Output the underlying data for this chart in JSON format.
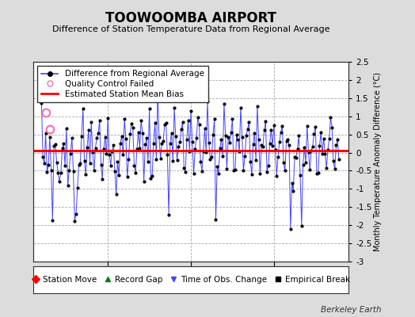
{
  "title": "TOOWOOMBA AIRPORT",
  "subtitle": "Difference of Station Temperature Data from Regional Average",
  "ylabel_right": "Monthly Temperature Anomaly Difference (°C)",
  "bias": 0.05,
  "ylim": [
    -3,
    2.5
  ],
  "yticks": [
    -3,
    -2.5,
    -2,
    -1.5,
    -1,
    -0.5,
    0,
    0.5,
    1,
    1.5,
    2,
    2.5
  ],
  "xlim": [
    1995.5,
    2014.5
  ],
  "xticks": [
    2000,
    2005,
    2010
  ],
  "background_color": "#dcdcdc",
  "plot_bg_color": "#ffffff",
  "line_color": "#4444ff",
  "marker_color": "#000000",
  "bias_color": "#ff0000",
  "qc_color": "#ff69b4",
  "legend1_labels": [
    "Difference from Regional Average",
    "Quality Control Failed",
    "Estimated Station Mean Bias"
  ],
  "legend2_labels": [
    "Station Move",
    "Record Gap",
    "Time of Obs. Change",
    "Empirical Break"
  ],
  "watermark": "Berkeley Earth",
  "seed": 42,
  "n_points": 216,
  "start_year": 1996.0,
  "data": [
    1.3,
    -0.1,
    -0.4,
    0.3,
    -0.5,
    -0.3,
    0.2,
    -0.6,
    -1.8,
    0.1,
    0.3,
    -0.2,
    -0.6,
    -0.5,
    -0.3,
    0.2,
    0.4,
    -0.4,
    0.8,
    -0.7,
    -0.7,
    0.0,
    0.4,
    -0.3,
    -1.8,
    -1.7,
    -0.8,
    -0.4,
    -0.2,
    0.5,
    1.3,
    -0.5,
    -0.6,
    0.3,
    0.5,
    -0.1,
    0.8,
    0.3,
    -0.3,
    0.1,
    0.3,
    0.5,
    0.9,
    -0.3,
    -0.5,
    0.2,
    0.5,
    -0.2,
    0.9,
    0.2,
    -0.4,
    0.1,
    0.3,
    -0.6,
    -1.3,
    -0.4,
    -0.5,
    0.3,
    0.4,
    -0.2,
    1.0,
    0.4,
    -0.5,
    0.0,
    0.4,
    0.6,
    0.7,
    -0.5,
    -0.6,
    0.2,
    0.5,
    -0.1,
    0.9,
    0.3,
    -0.4,
    0.1,
    0.4,
    -0.2,
    1.2,
    -0.4,
    -0.6,
    0.2,
    0.6,
    -0.1,
    1.8,
    0.5,
    -0.3,
    0.2,
    0.4,
    0.7,
    0.8,
    -0.2,
    -1.6,
    0.3,
    0.6,
    -0.0,
    1.2,
    0.4,
    -0.2,
    0.2,
    0.5,
    0.7,
    0.9,
    -0.3,
    -0.5,
    0.3,
    0.6,
    -0.0,
    1.1,
    0.3,
    -0.3,
    0.1,
    0.4,
    0.6,
    0.8,
    -0.3,
    -0.5,
    0.2,
    0.5,
    -0.1,
    1.3,
    0.4,
    -0.4,
    0.1,
    0.4,
    0.6,
    -1.7,
    -0.3,
    -0.6,
    0.2,
    0.6,
    -0.1,
    1.5,
    0.4,
    -0.3,
    0.2,
    0.4,
    0.6,
    0.8,
    -0.3,
    -0.5,
    0.3,
    0.6,
    -0.0,
    1.2,
    0.3,
    -0.3,
    0.1,
    0.4,
    0.6,
    0.8,
    -0.3,
    -0.5,
    0.2,
    0.5,
    -0.1,
    1.0,
    0.3,
    -0.4,
    0.1,
    0.3,
    0.5,
    0.7,
    -0.4,
    -0.5,
    0.2,
    0.5,
    -0.1,
    0.8,
    0.2,
    -0.5,
    0.0,
    0.3,
    0.5,
    0.7,
    -0.4,
    -0.5,
    0.1,
    0.4,
    -0.2,
    -2.2,
    -0.7,
    -0.9,
    -0.2,
    -0.1,
    0.0,
    0.4,
    -0.6,
    -1.9,
    -0.1,
    0.2,
    -0.4,
    0.7,
    0.2,
    -0.5,
    0.0,
    0.3,
    0.5,
    0.7,
    -0.4,
    -0.6,
    0.1,
    0.4,
    -0.2,
    0.6,
    0.1,
    -0.5,
    0.0,
    0.3,
    0.4,
    0.6,
    -0.4,
    -0.6,
    0.1,
    0.4,
    -0.3
  ]
}
